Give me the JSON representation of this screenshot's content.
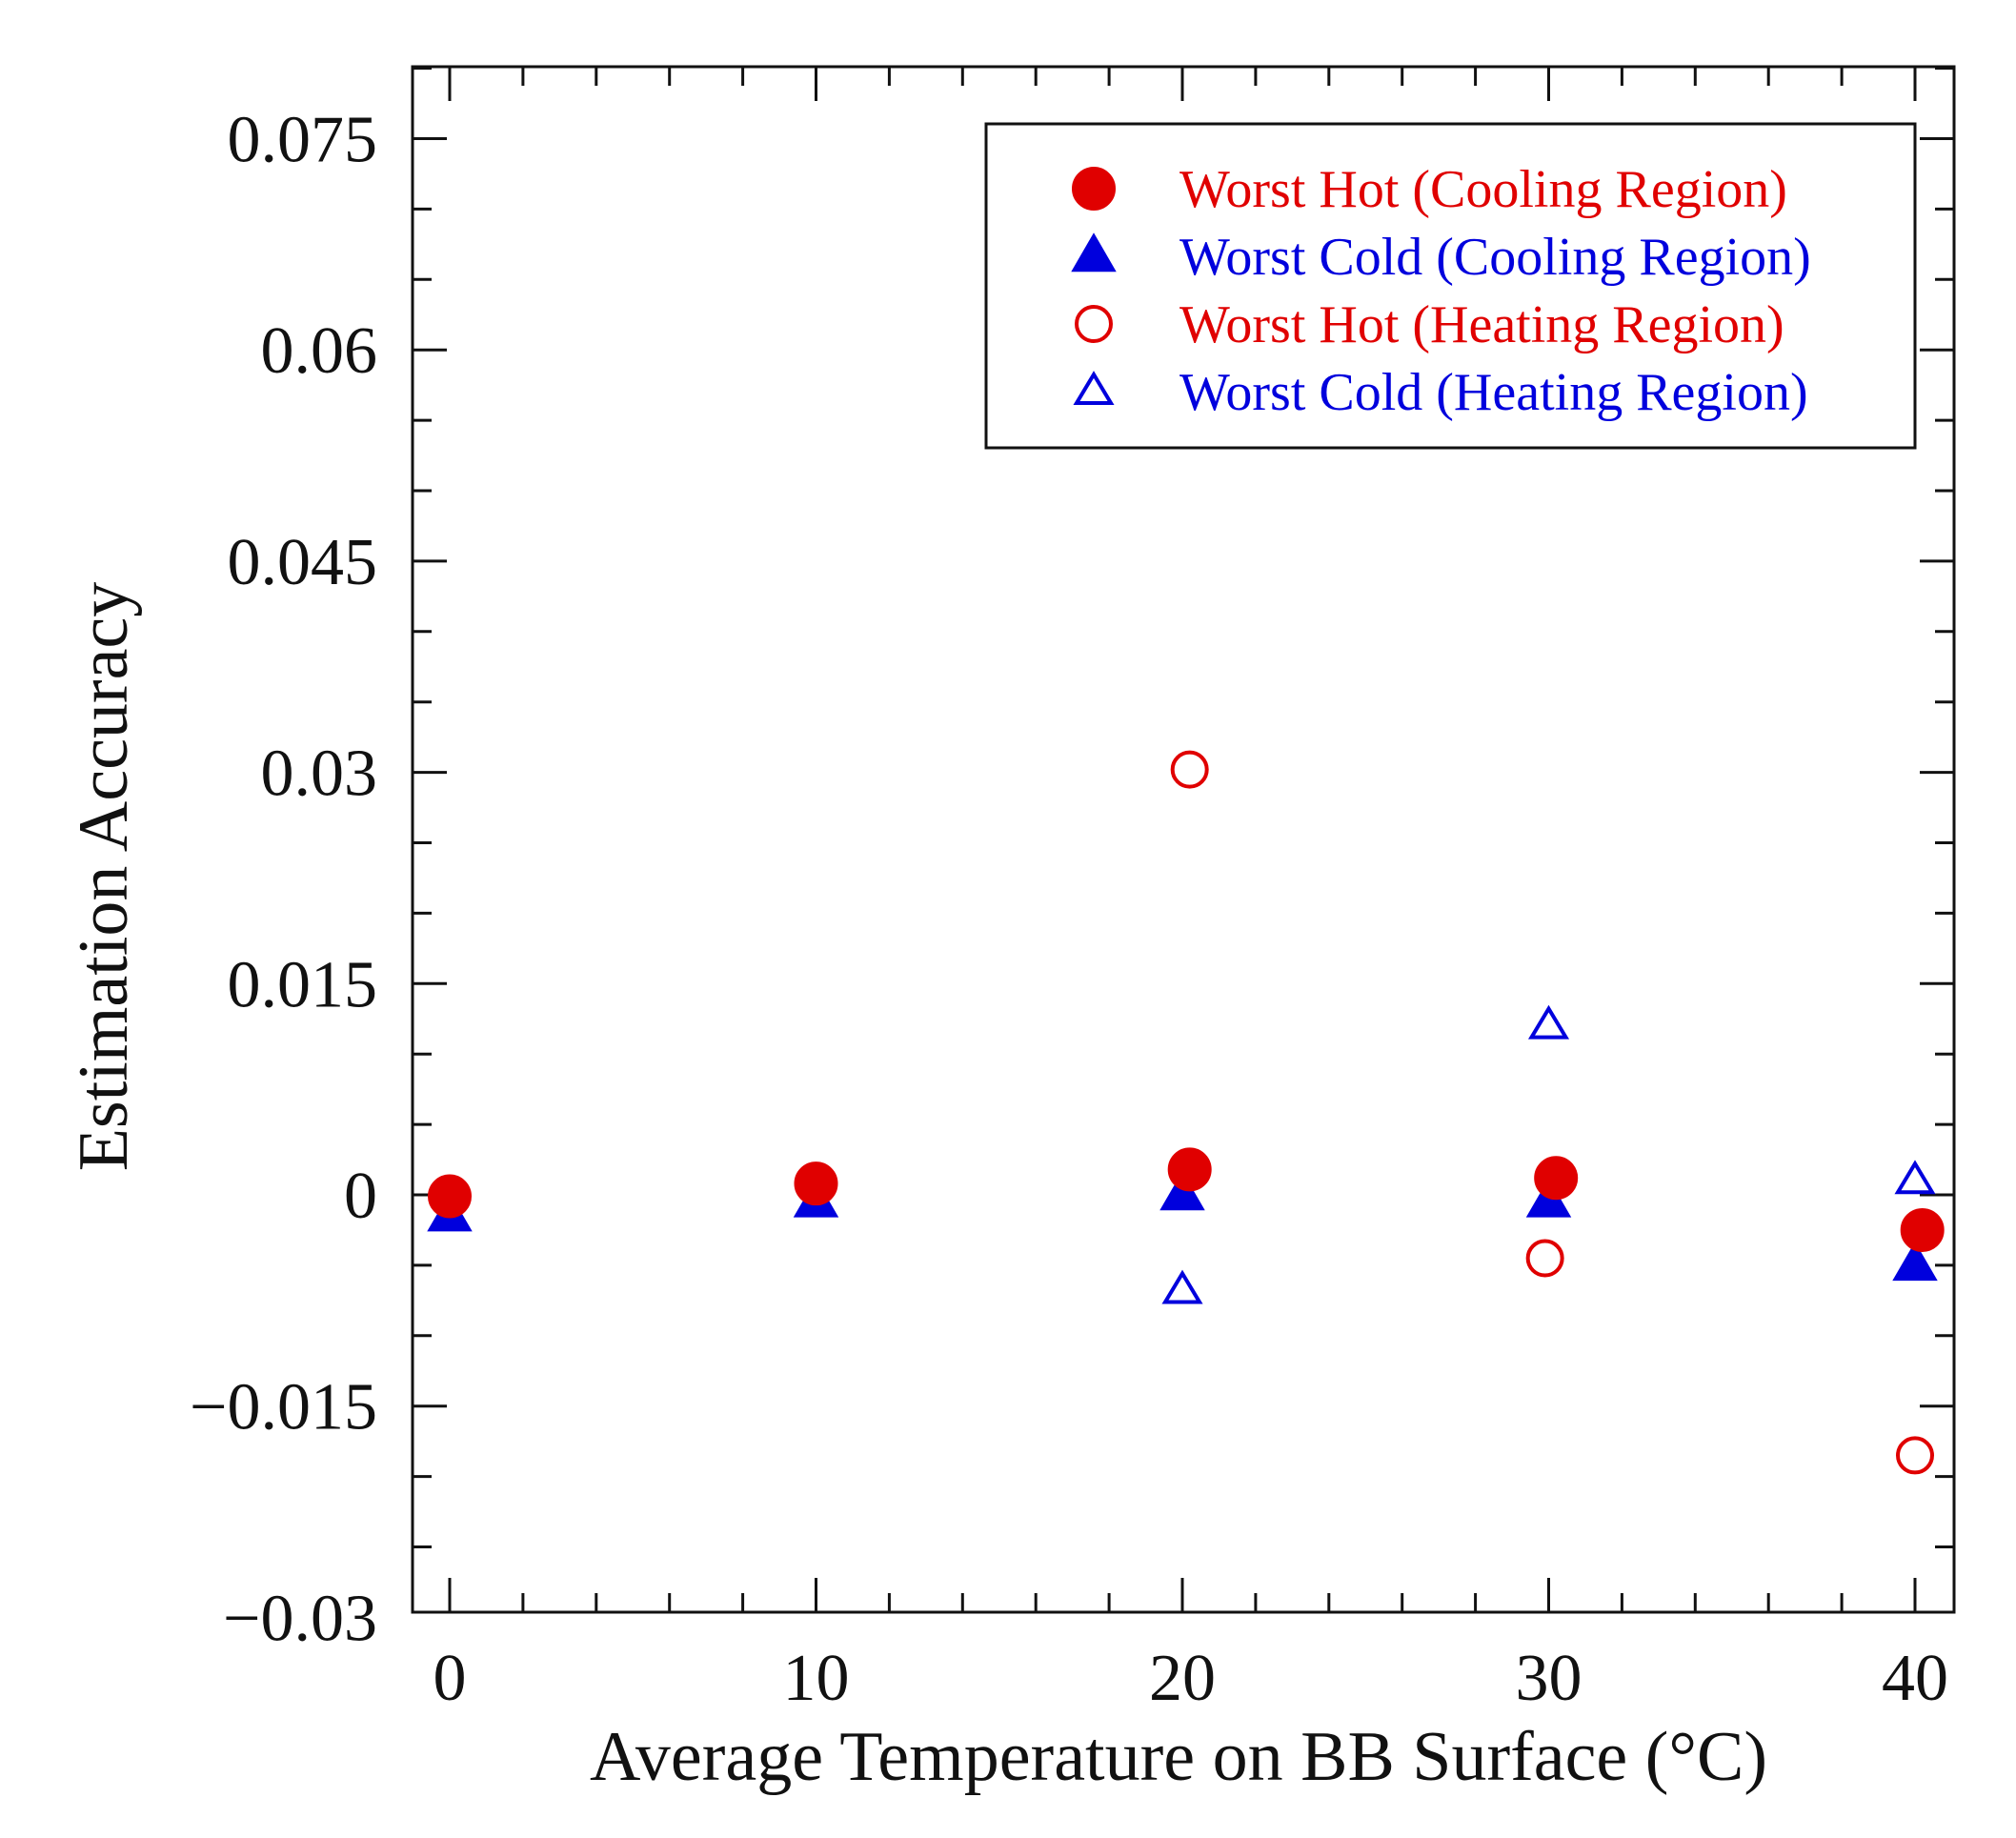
{
  "chart_data": {
    "type": "scatter",
    "title": "",
    "xlabel": "Average Temperature on BB Surface (°C)",
    "ylabel": "Estimation Accuracy",
    "xlim": [
      -1,
      41
    ],
    "ylim": [
      -0.03,
      0.08
    ],
    "x_ticks": [
      0,
      10,
      20,
      30,
      40
    ],
    "x_tick_labels": [
      "0",
      "10",
      "20",
      "30",
      "40"
    ],
    "y_ticks": [
      -0.03,
      -0.015,
      0,
      0.015,
      0.03,
      0.045,
      0.06,
      0.075
    ],
    "y_tick_labels": [
      "−0.03",
      "−0.015",
      "0",
      "0.015",
      "0.03",
      "0.045",
      "0.06",
      "0.075"
    ],
    "grid": false,
    "legend_position": "top-right",
    "series": [
      {
        "name": "Worst Hot (Cooling Region)",
        "color": "#e00000",
        "marker": "circle-filled",
        "points": [
          [
            0,
            -0.0001
          ],
          [
            10,
            0.0008
          ],
          [
            20.2,
            0.0018
          ],
          [
            30.2,
            0.0012
          ],
          [
            40.2,
            -0.0025
          ]
        ]
      },
      {
        "name": "Worst Cold (Cooling Region)",
        "color": "#0000dd",
        "marker": "triangle-filled",
        "points": [
          [
            0,
            -0.0015
          ],
          [
            10,
            -0.0005
          ],
          [
            20,
            0.0
          ],
          [
            30,
            -0.0005
          ],
          [
            40,
            -0.005
          ]
        ]
      },
      {
        "name": "Worst Hot (Heating Region)",
        "color": "#e00000",
        "marker": "circle-open",
        "points": [
          [
            20.2,
            0.0302
          ],
          [
            29.9,
            -0.0045
          ],
          [
            40,
            -0.0185
          ]
        ]
      },
      {
        "name": "Worst Cold (Heating Region)",
        "color": "#0000dd",
        "marker": "triangle-open",
        "points": [
          [
            20,
            -0.0068
          ],
          [
            30,
            0.012
          ],
          [
            40,
            0.001
          ]
        ]
      }
    ]
  }
}
